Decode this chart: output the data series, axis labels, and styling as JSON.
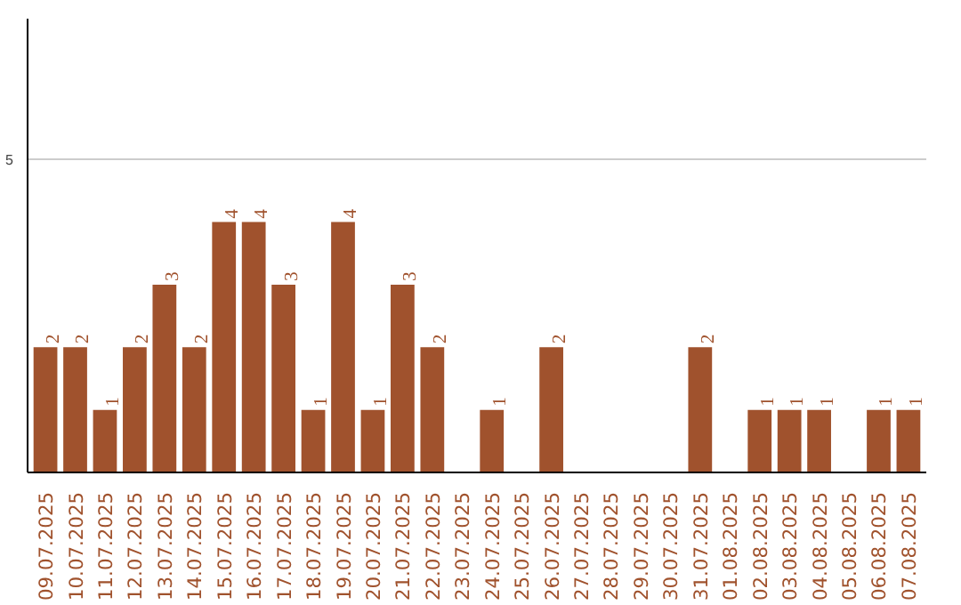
{
  "chart_data": {
    "type": "bar",
    "categories": [
      "09.07.2025",
      "10.07.2025",
      "11.07.2025",
      "12.07.2025",
      "13.07.2025",
      "14.07.2025",
      "15.07.2025",
      "16.07.2025",
      "17.07.2025",
      "18.07.2025",
      "19.07.2025",
      "20.07.2025",
      "21.07.2025",
      "22.07.2025",
      "23.07.2025",
      "24.07.2025",
      "25.07.2025",
      "26.07.2025",
      "27.07.2025",
      "28.07.2025",
      "29.07.2025",
      "30.07.2025",
      "31.07.2025",
      "01.08.2025",
      "02.08.2025",
      "03.08.2025",
      "04.08.2025",
      "05.08.2025",
      "06.08.2025",
      "07.08.2025"
    ],
    "values": [
      2,
      2,
      1,
      2,
      3,
      2,
      4,
      4,
      3,
      1,
      4,
      1,
      3,
      2,
      0,
      1,
      0,
      2,
      0,
      0,
      0,
      0,
      2,
      0,
      1,
      1,
      1,
      0,
      1,
      1
    ],
    "value_labels": [
      "2",
      "2",
      "1",
      "2",
      "3",
      "2",
      "4",
      "4",
      "3",
      "1",
      "4",
      "1",
      "3",
      "2",
      null,
      "1",
      null,
      "2",
      null,
      null,
      null,
      null,
      "2",
      null,
      "1",
      "1",
      "1",
      null,
      "1",
      "1"
    ],
    "color": "#a0522d",
    "ylim": [
      0,
      7.25
    ],
    "yticks": [
      5
    ],
    "grid": "y"
  }
}
